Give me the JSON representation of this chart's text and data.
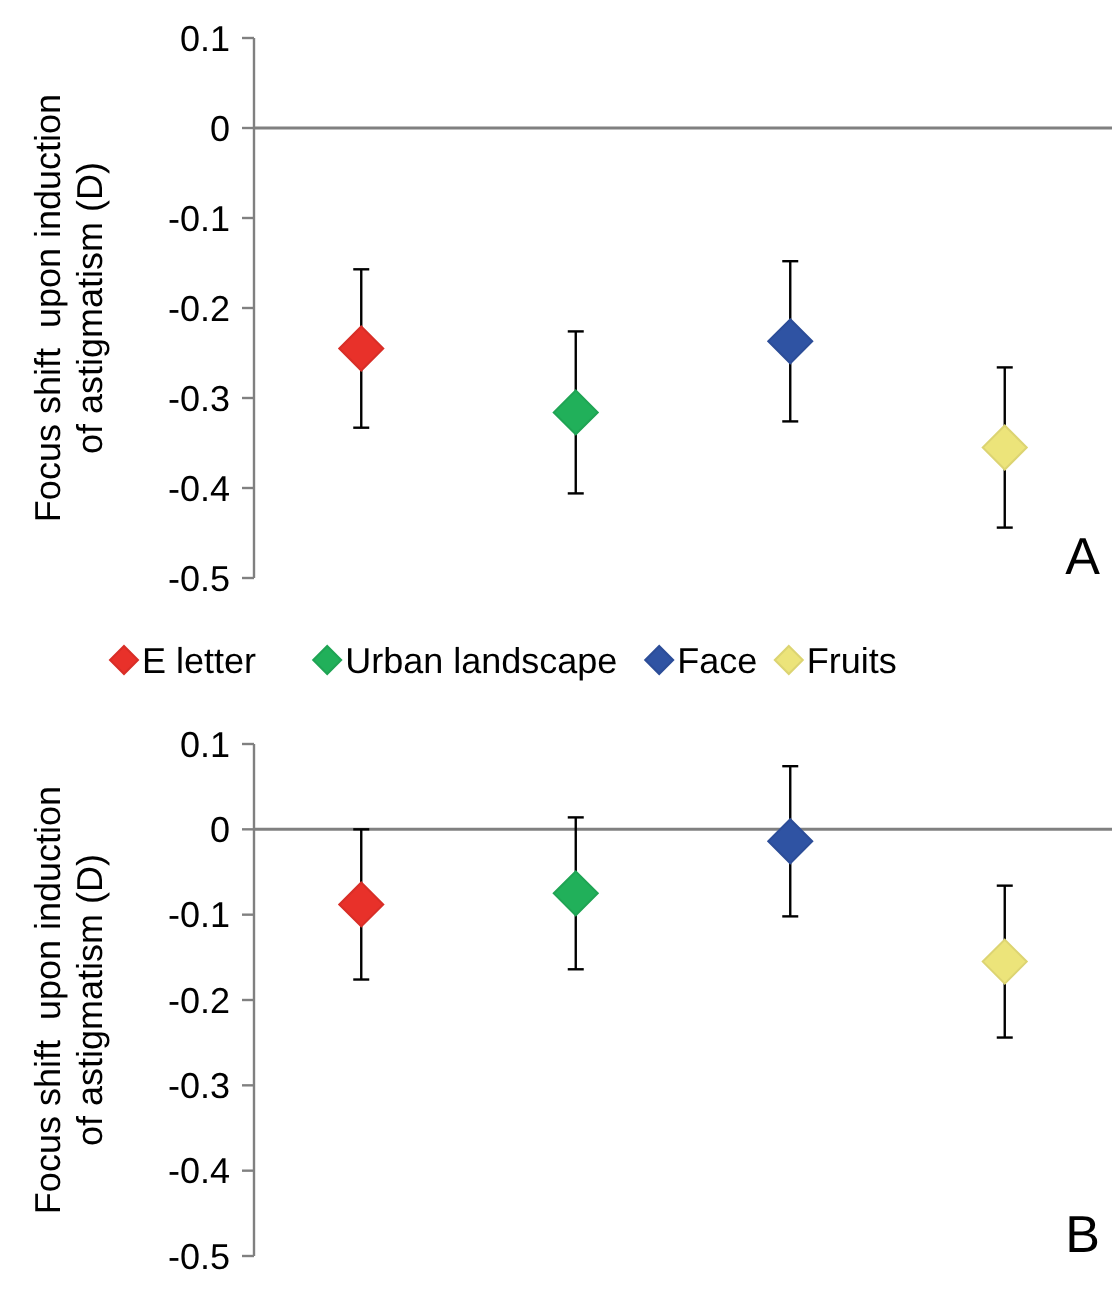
{
  "chart_data": [
    {
      "type": "scatter",
      "ylabel": "Focus shift  upon induction of astigmatism (D)",
      "categories": [
        null,
        null,
        null,
        null
      ],
      "ylim": [
        -0.5,
        0.1
      ],
      "yticks": [
        0.1,
        0,
        -0.1,
        -0.2,
        -0.3,
        -0.4,
        -0.5
      ],
      "marker": "diamond",
      "legend": "bottom",
      "annotations": [
        "A"
      ],
      "series": [
        {
          "name": "E letter",
          "color": "#e8312a",
          "values": [
            -0.245,
            null,
            null,
            null
          ],
          "errors": [
            0.088,
            null,
            null,
            null
          ]
        },
        {
          "name": "Urban landscape",
          "color": "#21b05a",
          "values": [
            null,
            -0.316,
            null,
            null
          ],
          "errors": [
            null,
            0.09,
            null,
            null
          ]
        },
        {
          "name": "Face",
          "color": "#2f53a3",
          "values": [
            null,
            null,
            -0.237,
            null
          ],
          "errors": [
            null,
            null,
            0.089,
            null
          ]
        },
        {
          "name": "Fruits",
          "color": "#ece47a",
          "values": [
            null,
            null,
            null,
            -0.355
          ],
          "errors": [
            null,
            null,
            null,
            0.089
          ]
        }
      ]
    },
    {
      "type": "scatter",
      "ylabel": "Focus shift  upon induction of astigmatism (D)",
      "categories": [
        null,
        null,
        null,
        null
      ],
      "ylim": [
        -0.5,
        0.1
      ],
      "yticks": [
        0.1,
        0,
        -0.1,
        -0.2,
        -0.3,
        -0.4,
        -0.5
      ],
      "marker": "diamond",
      "annotations": [
        "B"
      ],
      "series": [
        {
          "color": "#e8312a",
          "values": [
            -0.088,
            null,
            null,
            null
          ],
          "errors": [
            0.088,
            null,
            null,
            null
          ]
        },
        {
          "color": "#21b05a",
          "values": [
            null,
            -0.075,
            null,
            null
          ],
          "errors": [
            null,
            0.089,
            null,
            null
          ]
        },
        {
          "color": "#2f53a3",
          "values": [
            null,
            null,
            -0.014,
            null
          ],
          "errors": [
            null,
            null,
            0.088,
            null
          ]
        },
        {
          "color": "#ece47a",
          "values": [
            null,
            null,
            null,
            -0.155
          ],
          "errors": [
            null,
            null,
            null,
            0.089
          ]
        }
      ]
    }
  ]
}
